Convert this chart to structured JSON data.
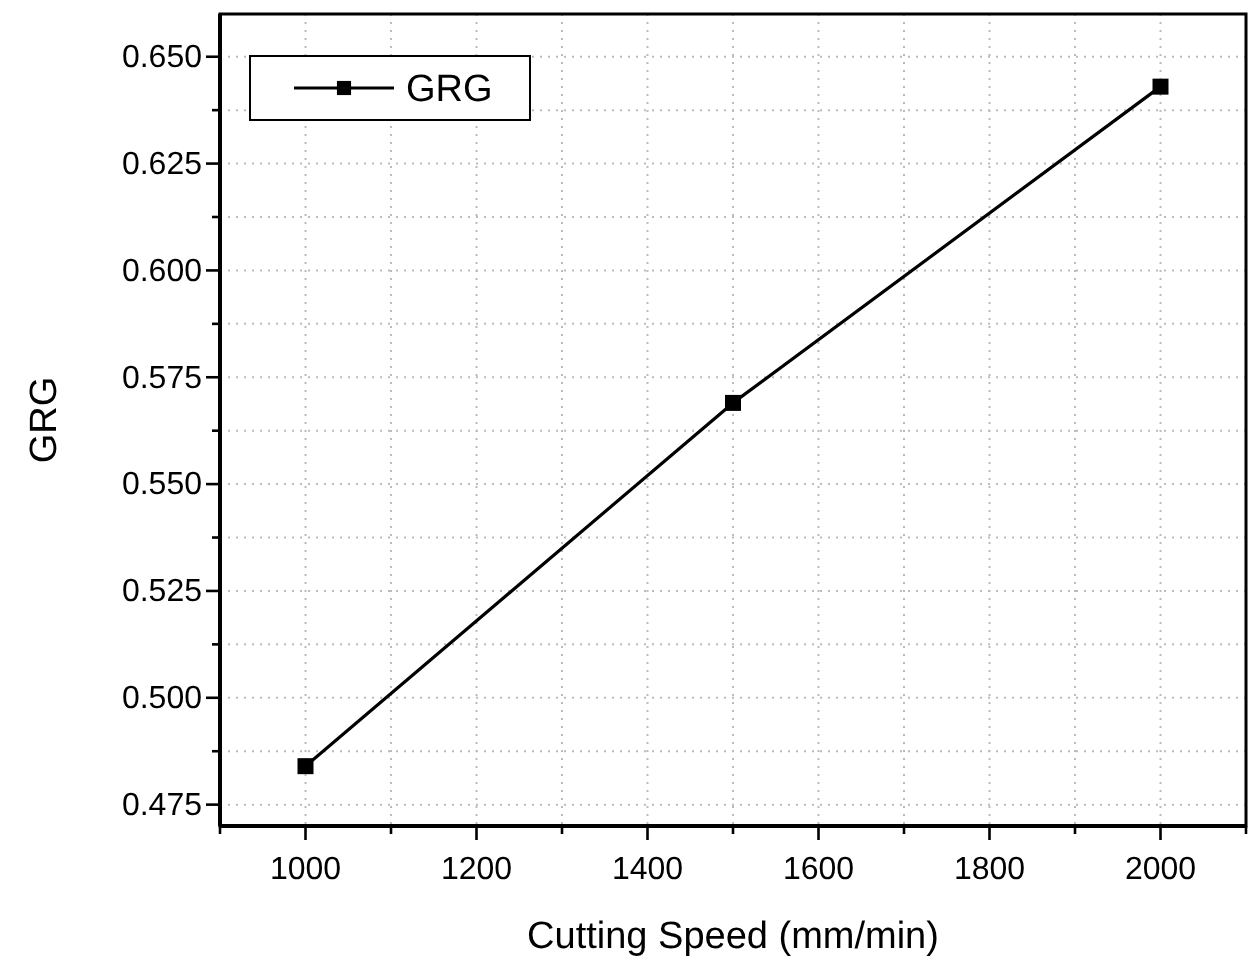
{
  "chart_data": {
    "type": "line",
    "xlabel": "Cutting Speed (mm/min)",
    "ylabel": "GRG",
    "x": [
      1000,
      1500,
      2000
    ],
    "series": [
      {
        "name": "GRG",
        "color": "#000000",
        "values": [
          0.484,
          0.569,
          0.643
        ]
      }
    ],
    "xlim": [
      900,
      2100
    ],
    "xticks": [
      {
        "value": 900,
        "label": null
      },
      1000,
      {
        "value": 1100,
        "label": null
      },
      1200,
      {
        "value": 1300,
        "label": null
      },
      1400,
      {
        "value": 1500,
        "label": null
      },
      1600,
      {
        "value": 1700,
        "label": null
      },
      1800,
      {
        "value": 1900,
        "label": null
      },
      2000,
      {
        "value": 2100,
        "label": null
      }
    ],
    "ylim": [
      0.47,
      0.66
    ],
    "yticks": [
      {
        "value": 0.475,
        "label": "0.475"
      },
      {
        "value": 0.4875,
        "label": null
      },
      {
        "value": 0.5,
        "label": "0.500"
      },
      {
        "value": 0.5125,
        "label": null
      },
      {
        "value": 0.525,
        "label": "0.525"
      },
      {
        "value": 0.5375,
        "label": null
      },
      {
        "value": 0.55,
        "label": "0.550"
      },
      {
        "value": 0.5625,
        "label": null
      },
      {
        "value": 0.575,
        "label": "0.575"
      },
      {
        "value": 0.5875,
        "label": null
      },
      {
        "value": 0.6,
        "label": "0.600"
      },
      {
        "value": 0.6125,
        "label": null
      },
      {
        "value": 0.625,
        "label": "0.625"
      },
      {
        "value": 0.6375,
        "label": null
      },
      {
        "value": 0.65,
        "label": "0.650"
      }
    ],
    "grid": true,
    "legend": "top left",
    "marker": "square",
    "line_style": "solid"
  }
}
